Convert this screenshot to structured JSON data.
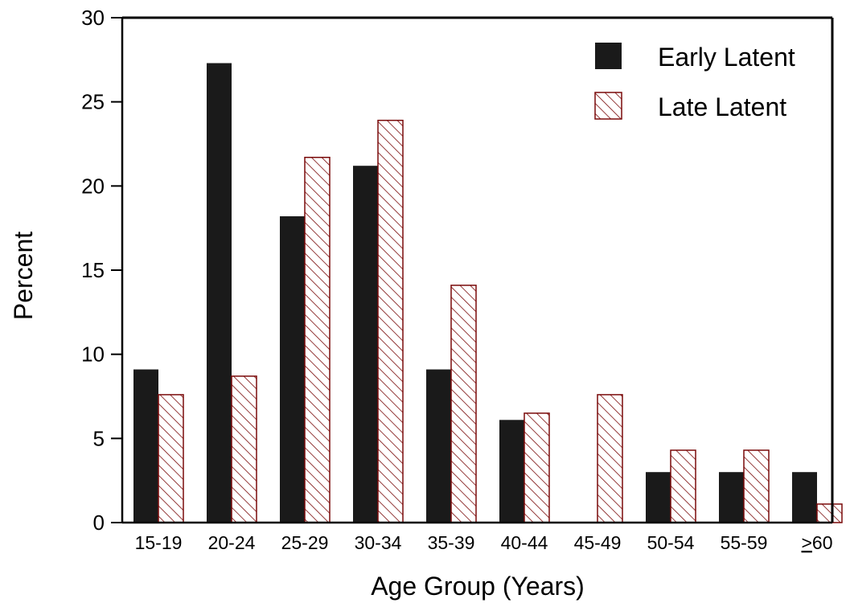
{
  "chart_data": {
    "type": "bar",
    "title": "",
    "xlabel": "Age Group (Years)",
    "ylabel": "Percent",
    "ylim": [
      0,
      30
    ],
    "yticks": [
      0,
      5,
      10,
      15,
      20,
      25,
      30
    ],
    "categories": [
      "15-19",
      "20-24",
      "25-29",
      "30-34",
      "35-39",
      "40-44",
      "45-49",
      "50-54",
      "55-59",
      ">60"
    ],
    "series": [
      {
        "name": "Early Latent",
        "color": "#1a1a1a",
        "pattern": "solid",
        "values": [
          9.1,
          27.3,
          18.2,
          21.2,
          9.1,
          6.1,
          0,
          3.0,
          3.0,
          3.0
        ]
      },
      {
        "name": "Late Latent",
        "color": "#7a0a0a",
        "pattern": "diagonal-hatch",
        "values": [
          7.6,
          8.7,
          21.7,
          23.9,
          14.1,
          6.5,
          7.6,
          4.3,
          4.3,
          1.1
        ]
      }
    ],
    "grid": false,
    "legend_position": "top-right"
  }
}
